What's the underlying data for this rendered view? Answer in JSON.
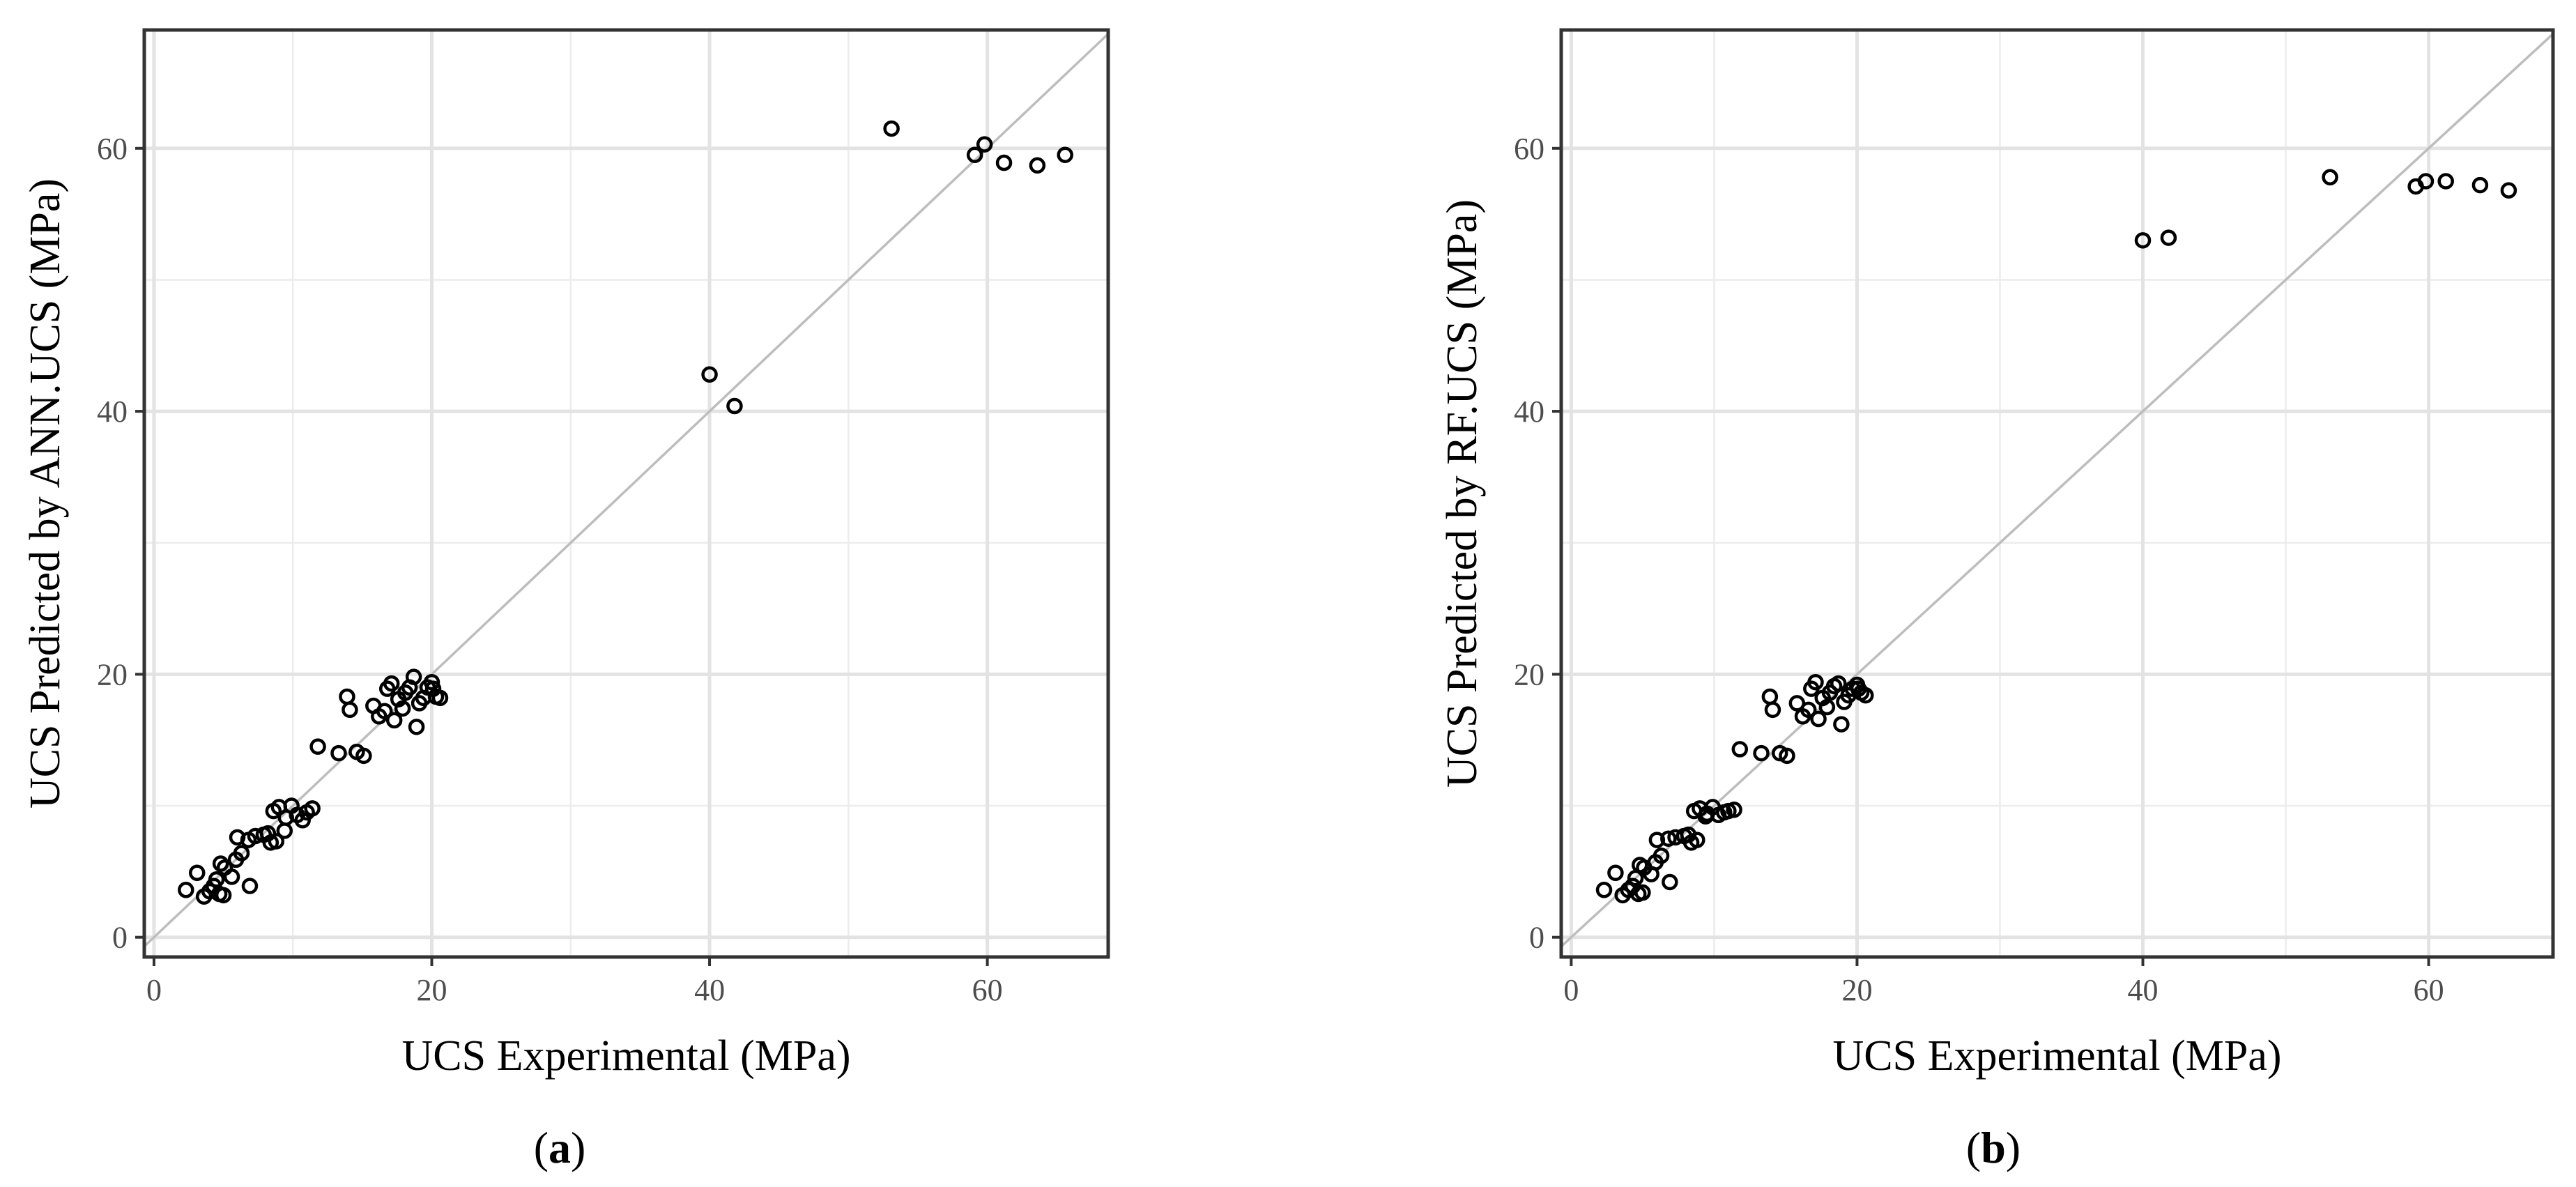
{
  "chart_data": [
    {
      "type": "scatter",
      "panel_label": "a",
      "xlabel": "UCS Experimental (MPa)",
      "ylabel": "UCS Predicted by ANN.UCS (MPa)",
      "xlim": [
        -0.7,
        68.7
      ],
      "ylim": [
        -1.5,
        69.0
      ],
      "xticks": [
        0,
        20,
        40,
        60
      ],
      "yticks": [
        0,
        20,
        40,
        60
      ],
      "grid": true,
      "reference_line": "y = x",
      "points": [
        [
          2.3,
          3.6
        ],
        [
          3.1,
          4.9
        ],
        [
          3.6,
          3.1
        ],
        [
          4.0,
          3.5
        ],
        [
          4.3,
          3.9
        ],
        [
          4.7,
          3.3
        ],
        [
          5.0,
          3.2
        ],
        [
          4.5,
          4.4
        ],
        [
          5.1,
          5.3
        ],
        [
          5.6,
          4.6
        ],
        [
          4.8,
          5.6
        ],
        [
          5.9,
          5.9
        ],
        [
          6.3,
          6.4
        ],
        [
          6.0,
          7.6
        ],
        [
          6.8,
          7.4
        ],
        [
          6.9,
          3.9
        ],
        [
          7.3,
          7.7
        ],
        [
          7.9,
          7.8
        ],
        [
          8.4,
          7.2
        ],
        [
          8.8,
          7.3
        ],
        [
          8.6,
          9.6
        ],
        [
          9.0,
          9.9
        ],
        [
          9.4,
          8.1
        ],
        [
          9.5,
          9.1
        ],
        [
          9.9,
          10.0
        ],
        [
          10.3,
          9.3
        ],
        [
          10.7,
          8.9
        ],
        [
          11.0,
          9.5
        ],
        [
          11.4,
          9.8
        ],
        [
          8.2,
          7.9
        ],
        [
          11.8,
          14.5
        ],
        [
          13.3,
          14.0
        ],
        [
          13.9,
          18.3
        ],
        [
          14.1,
          17.3
        ],
        [
          14.6,
          14.1
        ],
        [
          15.1,
          13.8
        ],
        [
          15.8,
          17.6
        ],
        [
          16.2,
          16.8
        ],
        [
          16.6,
          17.2
        ],
        [
          16.8,
          18.9
        ],
        [
          17.1,
          19.3
        ],
        [
          17.3,
          16.5
        ],
        [
          17.6,
          18.1
        ],
        [
          17.9,
          17.4
        ],
        [
          18.1,
          18.6
        ],
        [
          18.4,
          19.0
        ],
        [
          18.7,
          19.8
        ],
        [
          18.9,
          16.0
        ],
        [
          19.1,
          17.8
        ],
        [
          19.4,
          18.2
        ],
        [
          19.7,
          19.0
        ],
        [
          20.0,
          19.4
        ],
        [
          20.3,
          18.3
        ],
        [
          20.6,
          18.2
        ],
        [
          20.1,
          18.9
        ],
        [
          40.0,
          42.8
        ],
        [
          41.8,
          40.4
        ],
        [
          53.1,
          61.5
        ],
        [
          59.1,
          59.5
        ],
        [
          59.8,
          60.3
        ],
        [
          61.2,
          58.9
        ],
        [
          63.6,
          58.7
        ],
        [
          65.6,
          59.5
        ]
      ]
    },
    {
      "type": "scatter",
      "panel_label": "b",
      "xlabel": "UCS Experimental (MPa)",
      "ylabel": "UCS Predicted by RF.UCS (MPa)",
      "xlim": [
        -0.7,
        68.7
      ],
      "ylim": [
        -1.5,
        69.0
      ],
      "xticks": [
        0,
        20,
        40,
        60
      ],
      "yticks": [
        0,
        20,
        40,
        60
      ],
      "grid": true,
      "reference_line": "y = x",
      "points": [
        [
          2.3,
          3.6
        ],
        [
          3.1,
          4.9
        ],
        [
          3.6,
          3.2
        ],
        [
          4.0,
          3.6
        ],
        [
          4.3,
          3.9
        ],
        [
          4.7,
          3.3
        ],
        [
          5.0,
          3.4
        ],
        [
          4.5,
          4.5
        ],
        [
          5.1,
          5.3
        ],
        [
          5.6,
          4.8
        ],
        [
          4.8,
          5.5
        ],
        [
          5.9,
          5.7
        ],
        [
          6.3,
          6.2
        ],
        [
          6.0,
          7.4
        ],
        [
          6.8,
          7.5
        ],
        [
          6.9,
          4.2
        ],
        [
          7.3,
          7.6
        ],
        [
          7.9,
          7.7
        ],
        [
          8.4,
          7.2
        ],
        [
          8.8,
          7.4
        ],
        [
          8.6,
          9.6
        ],
        [
          9.0,
          9.8
        ],
        [
          9.4,
          9.2
        ],
        [
          9.5,
          9.4
        ],
        [
          9.9,
          9.9
        ],
        [
          10.3,
          9.3
        ],
        [
          10.7,
          9.5
        ],
        [
          11.0,
          9.6
        ],
        [
          11.4,
          9.7
        ],
        [
          8.2,
          7.8
        ],
        [
          11.8,
          14.3
        ],
        [
          13.3,
          14.0
        ],
        [
          13.9,
          18.3
        ],
        [
          14.1,
          17.3
        ],
        [
          14.6,
          14.0
        ],
        [
          15.1,
          13.8
        ],
        [
          15.8,
          17.8
        ],
        [
          16.2,
          16.8
        ],
        [
          16.6,
          17.3
        ],
        [
          16.8,
          18.9
        ],
        [
          17.1,
          19.4
        ],
        [
          17.3,
          16.6
        ],
        [
          17.6,
          18.2
        ],
        [
          17.9,
          17.5
        ],
        [
          18.1,
          18.6
        ],
        [
          18.4,
          19.1
        ],
        [
          18.7,
          19.3
        ],
        [
          18.9,
          16.2
        ],
        [
          19.1,
          17.9
        ],
        [
          19.4,
          18.4
        ],
        [
          19.7,
          18.9
        ],
        [
          20.0,
          19.2
        ],
        [
          20.3,
          18.6
        ],
        [
          20.6,
          18.4
        ],
        [
          20.1,
          18.9
        ],
        [
          40.0,
          53.0
        ],
        [
          41.8,
          53.2
        ],
        [
          53.1,
          57.8
        ],
        [
          59.1,
          57.1
        ],
        [
          59.8,
          57.5
        ],
        [
          61.2,
          57.5
        ],
        [
          63.6,
          57.2
        ],
        [
          65.6,
          56.8
        ]
      ]
    }
  ]
}
